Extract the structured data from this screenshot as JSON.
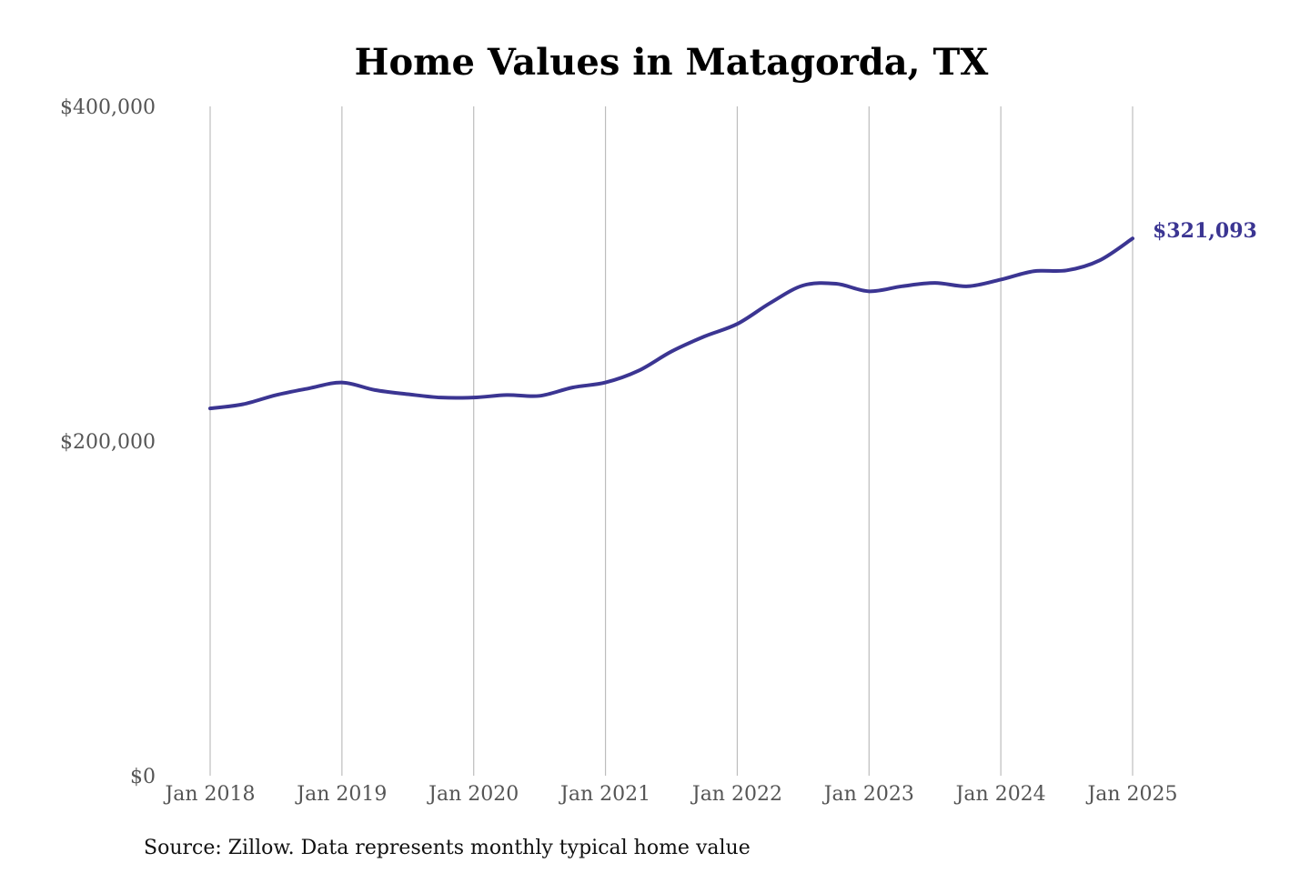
{
  "colors": {
    "line": "#3b3592",
    "grid": "#bdbdbd",
    "tick_text": "#555555"
  },
  "chart_data": {
    "type": "line",
    "title": "Home Values in Matagorda, TX",
    "xlabel": "",
    "ylabel": "",
    "ylim": [
      0,
      400000
    ],
    "y_ticks": [
      {
        "value": 0,
        "label": "$0"
      },
      {
        "value": 200000,
        "label": "$200,000"
      },
      {
        "value": 400000,
        "label": "$400,000"
      }
    ],
    "x_ticks": [
      {
        "date": "2018-01",
        "label": "Jan 2018"
      },
      {
        "date": "2019-01",
        "label": "Jan 2019"
      },
      {
        "date": "2020-01",
        "label": "Jan 2020"
      },
      {
        "date": "2021-01",
        "label": "Jan 2021"
      },
      {
        "date": "2022-01",
        "label": "Jan 2022"
      },
      {
        "date": "2023-01",
        "label": "Jan 2023"
      },
      {
        "date": "2024-01",
        "label": "Jan 2024"
      },
      {
        "date": "2025-01",
        "label": "Jan 2025"
      }
    ],
    "x_range": [
      "2018-01",
      "2025-01"
    ],
    "grid": "vertical",
    "series": [
      {
        "x": [
          "2018-01",
          "2018-04",
          "2018-07",
          "2018-10",
          "2019-01",
          "2019-04",
          "2019-07",
          "2019-10",
          "2020-01",
          "2020-04",
          "2020-07",
          "2020-10",
          "2021-01",
          "2021-04",
          "2021-07",
          "2021-10",
          "2022-01",
          "2022-04",
          "2022-07",
          "2022-10",
          "2023-01",
          "2023-04",
          "2023-07",
          "2023-10",
          "2024-01",
          "2024-04",
          "2024-07",
          "2024-10",
          "2025-01"
        ],
        "y": [
          219500,
          222000,
          227500,
          231500,
          235000,
          230500,
          228000,
          226000,
          226000,
          227500,
          227000,
          232000,
          235000,
          242000,
          253500,
          262500,
          270000,
          282500,
          293000,
          294000,
          289500,
          292500,
          294500,
          292500,
          296500,
          301500,
          302000,
          308000,
          321093
        ]
      }
    ],
    "annotations": [
      {
        "date": "2025-01",
        "value": 321093,
        "text": "$321,093"
      }
    ],
    "source": "Source: Zillow. Data represents monthly typical home value"
  }
}
